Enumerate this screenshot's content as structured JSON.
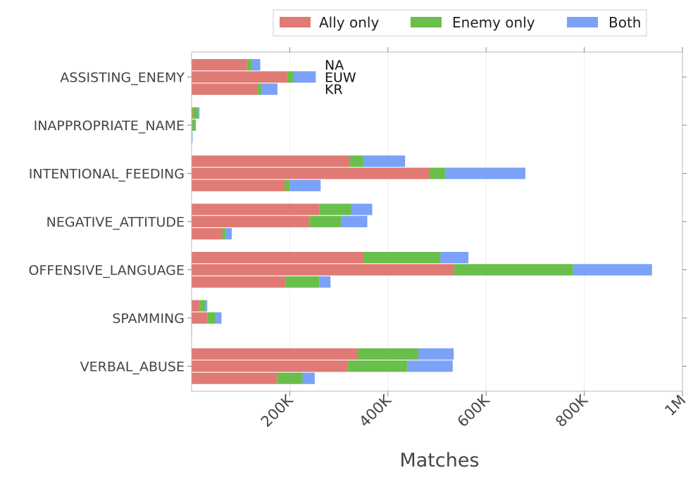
{
  "chart_data": {
    "type": "bar",
    "orientation": "horizontal",
    "stacked": true,
    "xlabel": "Matches",
    "xlim": [
      0,
      1000000
    ],
    "x_ticks": [
      200000,
      400000,
      600000,
      800000,
      1000000
    ],
    "x_tick_labels": [
      "200K",
      "400K",
      "600K",
      "800K",
      "1M"
    ],
    "grid": true,
    "legend_position": "top-right",
    "categories": [
      "ASSISTING_ENEMY",
      "INAPPROPRIATE_NAME",
      "INTENTIONAL_FEEDING",
      "NEGATIVE_ATTITUDE",
      "OFFENSIVE_LANGUAGE",
      "SPAMMING",
      "VERBAL_ABUSE"
    ],
    "regions": [
      "NA",
      "EUW",
      "KR"
    ],
    "region_labels_category": "ASSISTING_ENEMY",
    "series": [
      {
        "name": "Ally only",
        "color": "#e07a74",
        "values": {
          "NA": [
            113000,
            2000,
            323000,
            260000,
            350000,
            16000,
            338000
          ],
          "EUW": [
            195000,
            1000,
            485000,
            240000,
            535000,
            32000,
            318000
          ],
          "KR": [
            135000,
            0,
            190000,
            63000,
            192000,
            0,
            174000
          ]
        }
      },
      {
        "name": "Enemy only",
        "color": "#6abf4b",
        "values": {
          "NA": [
            10000,
            12000,
            27000,
            65000,
            157000,
            13000,
            124000
          ],
          "EUW": [
            13000,
            6000,
            32000,
            65000,
            242000,
            17000,
            122000
          ],
          "KR": [
            8000,
            0,
            10000,
            7000,
            68000,
            0,
            52000
          ]
        }
      },
      {
        "name": "Both",
        "color": "#7ba2f7",
        "values": {
          "NA": [
            17000,
            2000,
            85000,
            43000,
            57000,
            3000,
            72000
          ],
          "EUW": [
            45000,
            2000,
            163000,
            53000,
            161000,
            12000,
            92000
          ],
          "KR": [
            32000,
            2000,
            63000,
            12000,
            23000,
            1000,
            25000
          ]
        }
      }
    ]
  }
}
